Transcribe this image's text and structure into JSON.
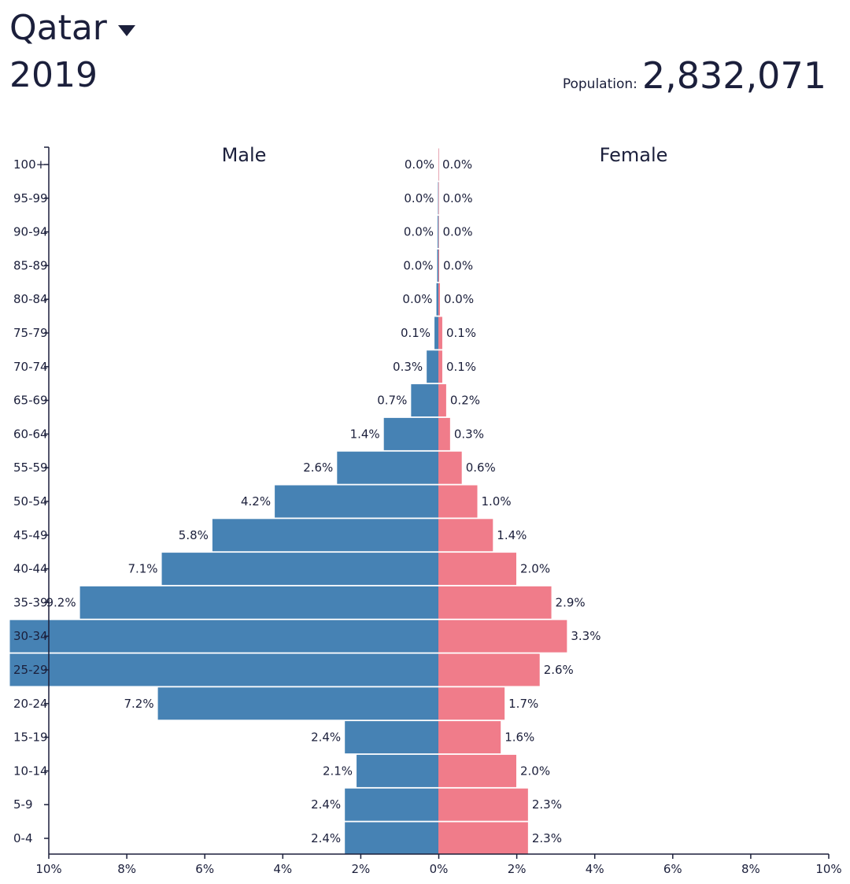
{
  "header": {
    "country": "Qatar",
    "year": "2019",
    "population_label": "Population:",
    "population_value": "2,832,071"
  },
  "colors": {
    "male": "#4682b4",
    "female": "#f07c8a",
    "text": "#1b1f3b"
  },
  "chart_data": {
    "type": "bar",
    "subtype": "population-pyramid",
    "series": [
      {
        "name": "Male",
        "values": [
          2.4,
          2.4,
          2.1,
          2.4,
          7.2,
          11.0,
          11.0,
          9.2,
          7.1,
          5.8,
          4.2,
          2.6,
          1.4,
          0.7,
          0.3,
          0.1,
          0.05,
          0.03,
          0.02,
          0.01,
          0.0
        ],
        "labels": [
          "2.4%",
          "2.4%",
          "2.1%",
          "2.4%",
          "7.2%",
          "",
          "",
          "9.2%",
          "7.1%",
          "5.8%",
          "4.2%",
          "2.6%",
          "1.4%",
          "0.7%",
          "0.3%",
          "0.1%",
          "0.0%",
          "0.0%",
          "0.0%",
          "0.0%",
          "0.0%"
        ]
      },
      {
        "name": "Female",
        "values": [
          2.3,
          2.3,
          2.0,
          1.6,
          1.7,
          2.6,
          3.3,
          2.9,
          2.0,
          1.4,
          1.0,
          0.6,
          0.3,
          0.2,
          0.1,
          0.1,
          0.04,
          0.02,
          0.01,
          0.01,
          0.0
        ],
        "labels": [
          "2.3%",
          "2.3%",
          "2.0%",
          "1.6%",
          "1.7%",
          "2.6%",
          "3.3%",
          "2.9%",
          "2.0%",
          "1.4%",
          "1.0%",
          "0.6%",
          "0.3%",
          "0.2%",
          "0.1%",
          "0.1%",
          "0.0%",
          "0.0%",
          "0.0%",
          "0.0%",
          "0.0%"
        ]
      }
    ],
    "categories": [
      "0-4",
      "5-9",
      "10-14",
      "15-19",
      "20-24",
      "25-29",
      "30-34",
      "35-39",
      "40-44",
      "45-49",
      "50-54",
      "55-59",
      "60-64",
      "65-69",
      "70-74",
      "75-79",
      "80-84",
      "85-89",
      "90-94",
      "95-99",
      "100+"
    ],
    "x_ticks": [
      "10%",
      "8%",
      "6%",
      "4%",
      "2%",
      "0%",
      "2%",
      "4%",
      "6%",
      "8%",
      "10%"
    ],
    "xlim": [
      -10,
      10
    ],
    "male_label": "Male",
    "female_label": "Female"
  }
}
